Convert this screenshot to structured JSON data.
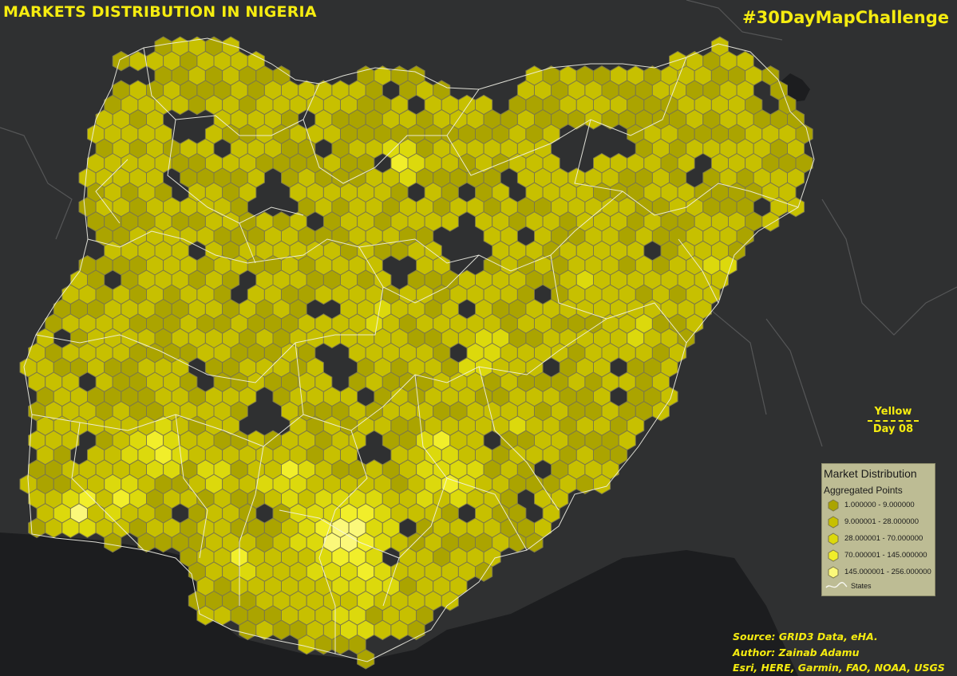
{
  "title": "MARKETS DISTRIBUTION IN NIGERIA",
  "hashtag": "#30DayMapChallenge",
  "theme": {
    "label": "Yellow",
    "day": "Day 08"
  },
  "legend": {
    "title": "Market Distribution",
    "subtitle": "Aggregated Points",
    "classes": [
      {
        "label": "1.000000 - 9.000000",
        "color": "#aba400"
      },
      {
        "label": "9.000001 - 28.000000",
        "color": "#c7c000"
      },
      {
        "label": "28.000001 - 70.000000",
        "color": "#dcd90c"
      },
      {
        "label": "70.000001 - 145.000000",
        "color": "#f1ee2a"
      },
      {
        "label": "145.000001 - 256.000000",
        "color": "#fbf87a"
      }
    ],
    "states_label": "States"
  },
  "credits": {
    "source": "Source: GRID3 Data, eHA.",
    "author": "Author: Zainab Adamu",
    "basemap": "Esri, HERE, Garmin, FAO, NOAA, USGS"
  },
  "colors": {
    "background": "#2f3031",
    "ocean": "#1c1d1f",
    "hex_stroke": "#7c7849",
    "state_border": "#f2f2e8",
    "text_accent": "#f5ec10"
  }
}
